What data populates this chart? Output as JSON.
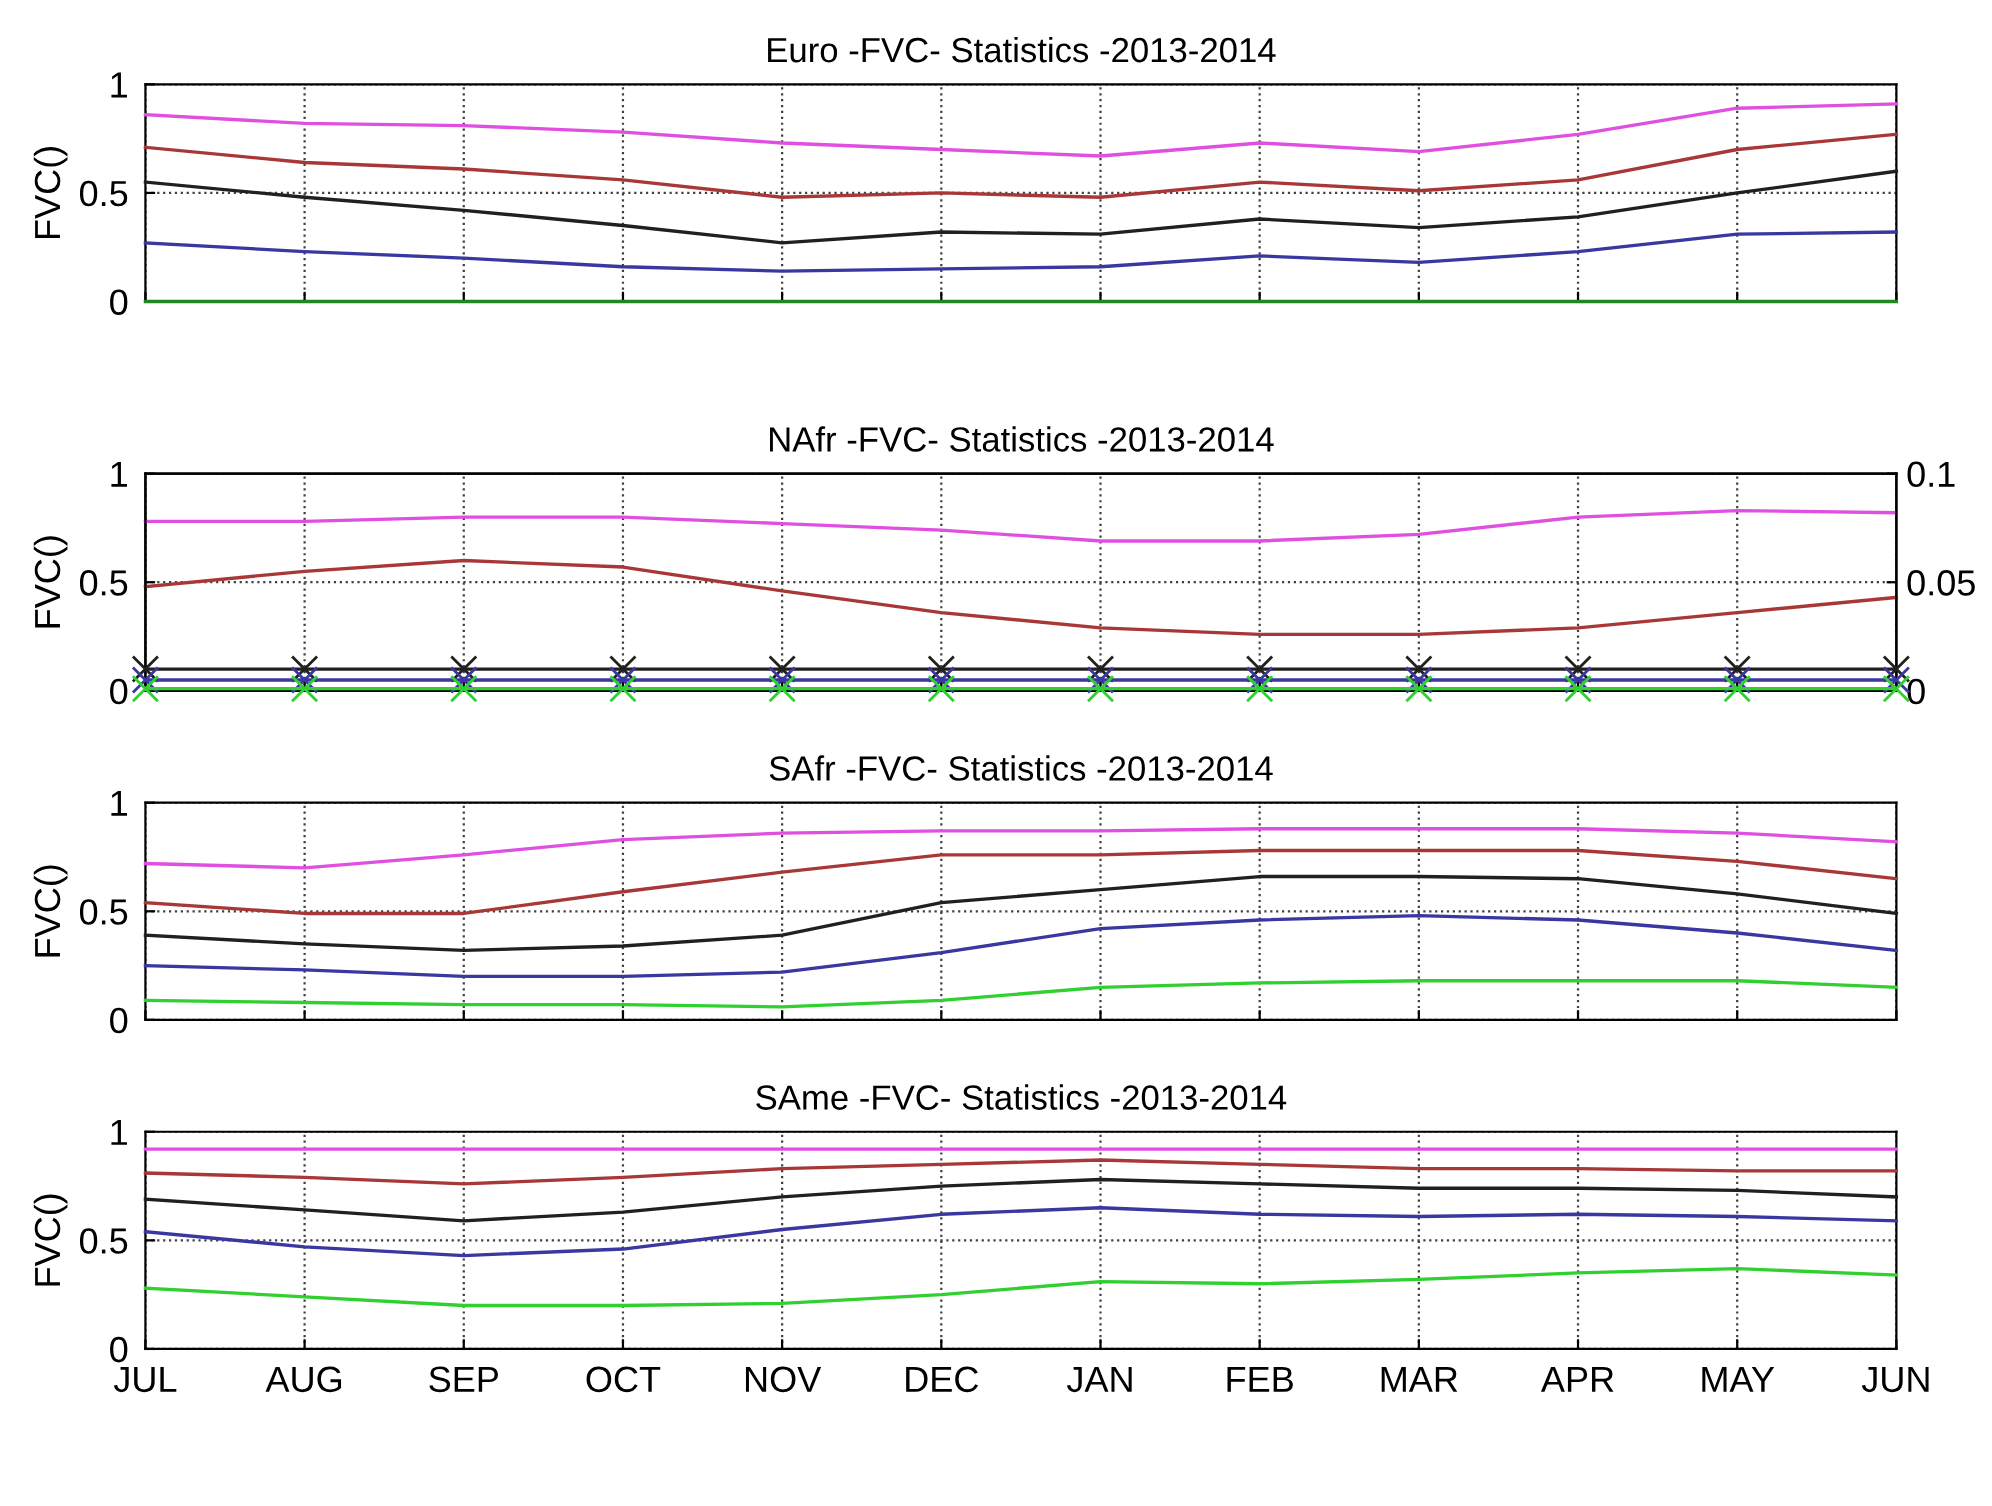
{
  "chart_data": [
    {
      "type": "line",
      "title": "Euro -FVC- Statistics -2013-2014",
      "ylabel": "FVC()",
      "categories": [
        null,
        null,
        null,
        null,
        null,
        null,
        null,
        null,
        null,
        null,
        null,
        null
      ],
      "grid": true,
      "ylim": [
        0,
        1
      ],
      "yticks": [
        0,
        0.5,
        1
      ],
      "series": [
        {
          "color": "#e050e0",
          "values": [
            0.86,
            0.82,
            0.81,
            0.78,
            0.73,
            0.7,
            0.67,
            0.73,
            0.69,
            0.77,
            0.89,
            0.91
          ]
        },
        {
          "color": "#a83838",
          "values": [
            0.71,
            0.64,
            0.61,
            0.56,
            0.48,
            0.5,
            0.48,
            0.55,
            0.51,
            0.56,
            0.7,
            0.77
          ]
        },
        {
          "color": "#202020",
          "values": [
            0.55,
            0.48,
            0.42,
            0.35,
            0.27,
            0.32,
            0.31,
            0.38,
            0.34,
            0.39,
            0.5,
            0.6
          ]
        },
        {
          "color": "#3838a0",
          "values": [
            0.27,
            0.23,
            0.2,
            0.16,
            0.14,
            0.15,
            0.16,
            0.21,
            0.18,
            0.23,
            0.31,
            0.32
          ]
        },
        {
          "color": "#208820",
          "values": [
            0,
            0,
            0,
            0,
            0,
            0,
            0,
            0,
            0,
            0,
            0,
            0
          ]
        }
      ]
    },
    {
      "type": "line",
      "title": "NAfr -FVC- Statistics -2013-2014",
      "ylabel": "FVC()",
      "categories": [
        null,
        null,
        null,
        null,
        null,
        null,
        null,
        null,
        null,
        null,
        null,
        null
      ],
      "grid": true,
      "ylim": [
        0,
        1
      ],
      "yticks": [
        0,
        0.5,
        1
      ],
      "y2lim": [
        0,
        0.1
      ],
      "y2ticks": [
        0,
        0.05,
        0.1
      ],
      "series": [
        {
          "color": "#e050e0",
          "values": [
            0.78,
            0.78,
            0.8,
            0.8,
            0.77,
            0.74,
            0.69,
            0.69,
            0.72,
            0.8,
            0.83,
            0.82
          ]
        },
        {
          "color": "#a83838",
          "values": [
            0.48,
            0.55,
            0.6,
            0.57,
            0.46,
            0.36,
            0.29,
            0.26,
            0.26,
            0.29,
            0.36,
            0.43
          ]
        },
        {
          "color": "#202020",
          "axis": "y2",
          "marker": "cross",
          "values": [
            0.01,
            0.01,
            0.01,
            0.01,
            0.01,
            0.01,
            0.01,
            0.01,
            0.01,
            0.01,
            0.01,
            0.01
          ]
        },
        {
          "color": "#3838a0",
          "axis": "y2",
          "marker": "cross",
          "values": [
            0.005,
            0.005,
            0.005,
            0.005,
            0.005,
            0.005,
            0.005,
            0.005,
            0.005,
            0.005,
            0.005,
            0.005
          ]
        },
        {
          "color": "#30d030",
          "axis": "y2",
          "marker": "cross",
          "values": [
            0.001,
            0.001,
            0.001,
            0.001,
            0.001,
            0.001,
            0.001,
            0.001,
            0.001,
            0.001,
            0.001,
            0.001
          ]
        }
      ]
    },
    {
      "type": "line",
      "title": "SAfr -FVC- Statistics -2013-2014",
      "ylabel": "FVC()",
      "categories": [
        null,
        null,
        null,
        null,
        null,
        null,
        null,
        null,
        null,
        null,
        null,
        null
      ],
      "grid": true,
      "ylim": [
        0,
        1
      ],
      "yticks": [
        0,
        0.5,
        1
      ],
      "series": [
        {
          "color": "#e050e0",
          "values": [
            0.72,
            0.7,
            0.76,
            0.83,
            0.86,
            0.87,
            0.87,
            0.88,
            0.88,
            0.88,
            0.86,
            0.82
          ]
        },
        {
          "color": "#a83838",
          "values": [
            0.54,
            0.49,
            0.49,
            0.59,
            0.68,
            0.76,
            0.76,
            0.78,
            0.78,
            0.78,
            0.73,
            0.65
          ]
        },
        {
          "color": "#202020",
          "values": [
            0.39,
            0.35,
            0.32,
            0.34,
            0.39,
            0.54,
            0.6,
            0.66,
            0.66,
            0.65,
            0.58,
            0.49
          ]
        },
        {
          "color": "#3838a0",
          "values": [
            0.25,
            0.23,
            0.2,
            0.2,
            0.22,
            0.31,
            0.42,
            0.46,
            0.48,
            0.46,
            0.4,
            0.32
          ]
        },
        {
          "color": "#30d030",
          "values": [
            0.09,
            0.08,
            0.07,
            0.07,
            0.06,
            0.09,
            0.15,
            0.17,
            0.18,
            0.18,
            0.18,
            0.15
          ]
        }
      ]
    },
    {
      "type": "line",
      "title": "SAme -FVC- Statistics -2013-2014",
      "ylabel": "FVC()",
      "categories": [
        "JUL",
        "AUG",
        "SEP",
        "OCT",
        "NOV",
        "DEC",
        "JAN",
        "FEB",
        "MAR",
        "APR",
        "MAY",
        "JUN"
      ],
      "grid": true,
      "ylim": [
        0,
        1
      ],
      "yticks": [
        0,
        0.5,
        1
      ],
      "series": [
        {
          "color": "#e050e0",
          "values": [
            0.92,
            0.92,
            0.92,
            0.92,
            0.92,
            0.92,
            0.92,
            0.92,
            0.92,
            0.92,
            0.92,
            0.92
          ]
        },
        {
          "color": "#a83838",
          "values": [
            0.81,
            0.79,
            0.76,
            0.79,
            0.83,
            0.85,
            0.87,
            0.85,
            0.83,
            0.83,
            0.82,
            0.82
          ]
        },
        {
          "color": "#202020",
          "values": [
            0.69,
            0.64,
            0.59,
            0.63,
            0.7,
            0.75,
            0.78,
            0.76,
            0.74,
            0.74,
            0.73,
            0.7
          ]
        },
        {
          "color": "#3838a0",
          "values": [
            0.54,
            0.47,
            0.43,
            0.46,
            0.55,
            0.62,
            0.65,
            0.62,
            0.61,
            0.62,
            0.61,
            0.59
          ]
        },
        {
          "color": "#30d030",
          "values": [
            0.28,
            0.24,
            0.2,
            0.2,
            0.21,
            0.25,
            0.31,
            0.3,
            0.32,
            0.35,
            0.37,
            0.34
          ]
        }
      ]
    }
  ]
}
